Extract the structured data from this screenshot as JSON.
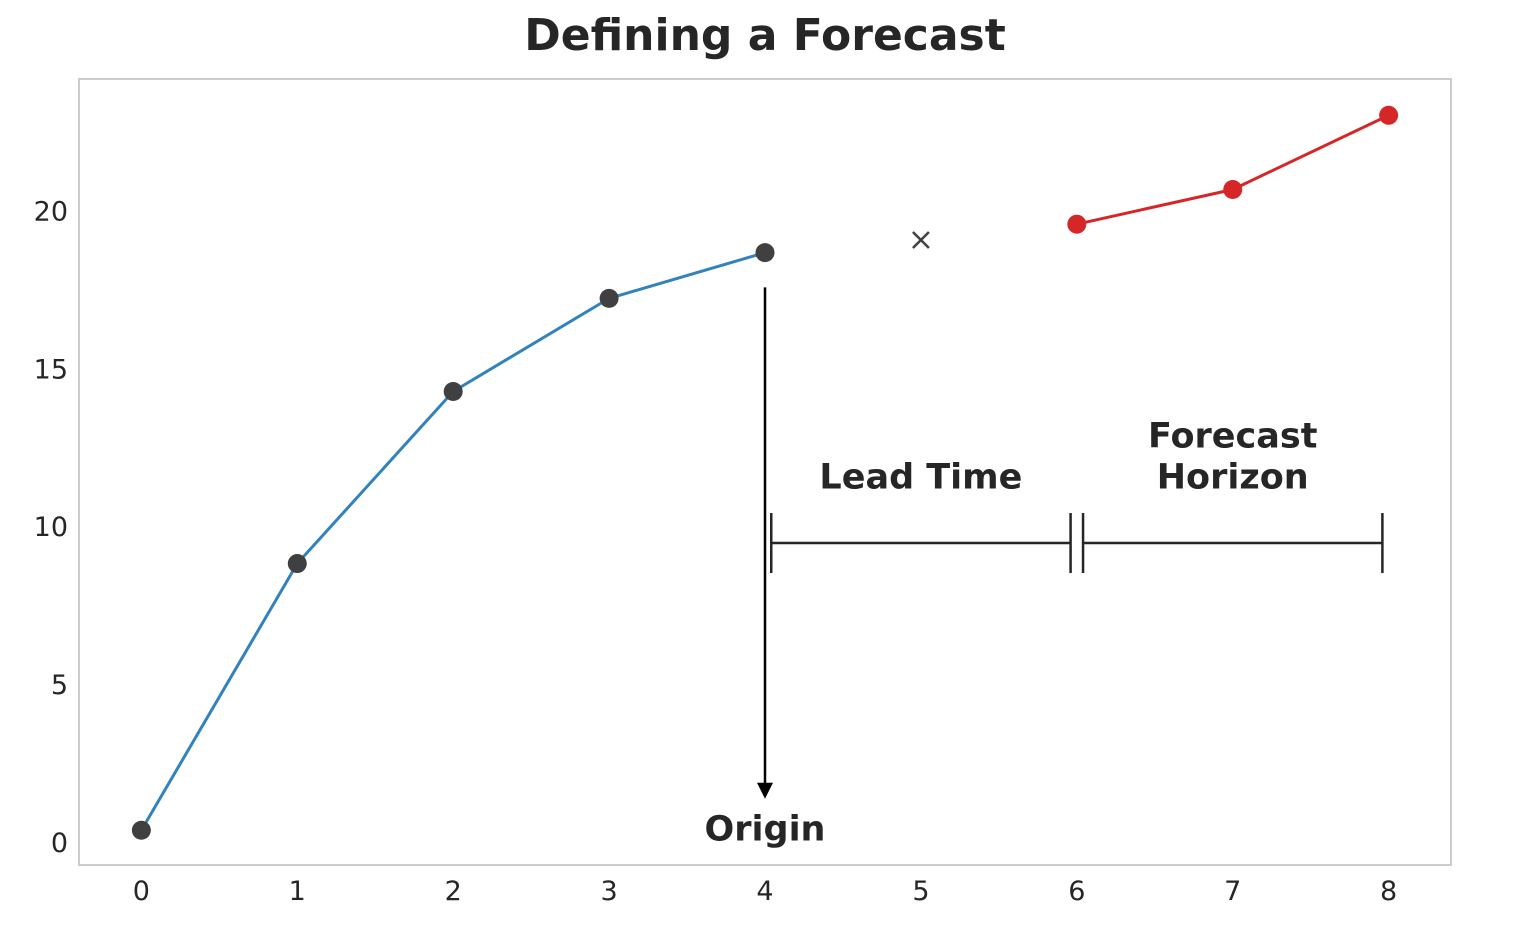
{
  "chart_data": {
    "type": "line",
    "title": "Defining a Forecast",
    "xlabel": "",
    "ylabel": "",
    "xlim": [
      -0.4,
      8.4
    ],
    "ylim": [
      -0.7,
      24.2
    ],
    "x_ticks": [
      0,
      1,
      2,
      3,
      4,
      5,
      6,
      7,
      8
    ],
    "y_ticks": [
      0,
      5,
      10,
      15,
      20
    ],
    "grid": false,
    "series": [
      {
        "role": "history",
        "color": "#3182bd",
        "marker_color": "#404040",
        "x": [
          0,
          1,
          2,
          3,
          4
        ],
        "y": [
          0.4,
          8.85,
          14.3,
          17.25,
          18.7
        ]
      },
      {
        "role": "forecast",
        "color": "#d62728",
        "marker_color": "#d62728",
        "x": [
          6,
          7,
          8
        ],
        "y": [
          19.6,
          20.7,
          23.05
        ]
      }
    ],
    "lead_point": {
      "x": 5,
      "y": 19.1,
      "marker": "x",
      "color": "#404040"
    },
    "origin_arrow": {
      "x": 4,
      "y_start": 17.6,
      "y_end": 1.4
    },
    "origin_label": {
      "text": "Origin",
      "x": 4,
      "y": 0.4
    },
    "intervals": [
      {
        "label_lines": [
          "Lead Time"
        ],
        "x_start": 4.04,
        "x_end": 5.96,
        "y": 9.5,
        "label_y": [
          11.6
        ]
      },
      {
        "label_lines": [
          "Forecast",
          "Horizon"
        ],
        "x_start": 6.04,
        "x_end": 7.96,
        "y": 9.5,
        "label_y": [
          12.9,
          11.6
        ]
      }
    ],
    "colors": {
      "frame": "#cccccc",
      "annotation": "#262626",
      "arrow": "#000000"
    }
  }
}
